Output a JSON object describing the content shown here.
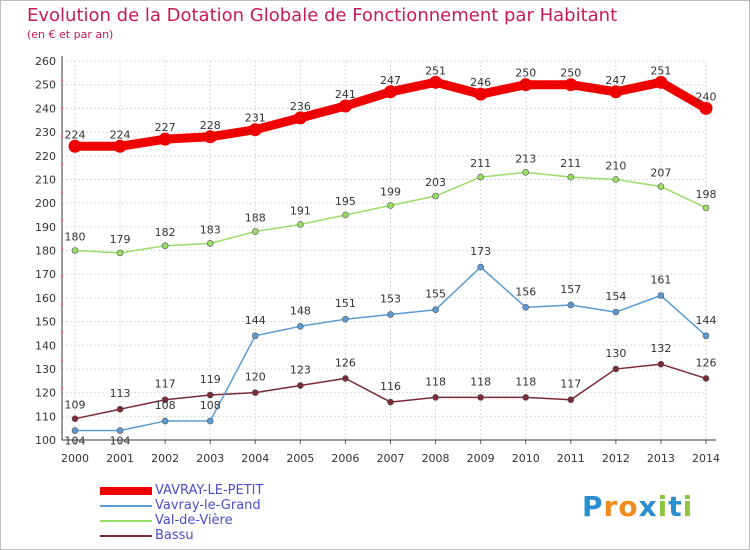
{
  "header": {
    "title": "Evolution de la Dotation Globale de Fonctionnement par Habitant",
    "subtitle": "(en € et par an)"
  },
  "logo": {
    "letters": [
      "P",
      "r",
      "o",
      "x",
      "i",
      "t",
      "i"
    ],
    "colors": [
      "#2a8fd0",
      "#f18c1e",
      "#f18c1e",
      "#2a8fd0",
      "#8cc63f",
      "#2a8fd0",
      "#8cc63f"
    ]
  },
  "chart_data": {
    "type": "line",
    "x": [
      "2000",
      "2001",
      "2002",
      "2003",
      "2004",
      "2005",
      "2006",
      "2007",
      "2008",
      "2009",
      "2010",
      "2011",
      "2012",
      "2013",
      "2014"
    ],
    "ylim": [
      100,
      260
    ],
    "yticks": [
      100,
      110,
      120,
      130,
      140,
      150,
      160,
      170,
      180,
      190,
      200,
      210,
      220,
      230,
      240,
      250,
      260
    ],
    "grid": true,
    "legend_position": "bottom-left",
    "series": [
      {
        "name": "VAVRAY-LE-PETIT",
        "color": "#ee0000",
        "values": [
          224,
          224,
          227,
          228,
          231,
          236,
          241,
          247,
          251,
          246,
          250,
          250,
          247,
          251,
          240
        ]
      },
      {
        "name": "Vavray-le-Grand",
        "color": "#5b9bd5",
        "values": [
          104,
          104,
          108,
          108,
          144,
          148,
          151,
          153,
          155,
          173,
          156,
          157,
          154,
          161,
          144
        ]
      },
      {
        "name": "Val-de-Vière",
        "color": "#99dd66",
        "values": [
          180,
          179,
          182,
          183,
          188,
          191,
          195,
          199,
          203,
          211,
          213,
          211,
          210,
          207,
          198
        ]
      },
      {
        "name": "Bassu",
        "color": "#7a2a36",
        "values": [
          109,
          113,
          117,
          119,
          120,
          123,
          126,
          116,
          118,
          118,
          118,
          117,
          130,
          132,
          126
        ]
      }
    ]
  }
}
